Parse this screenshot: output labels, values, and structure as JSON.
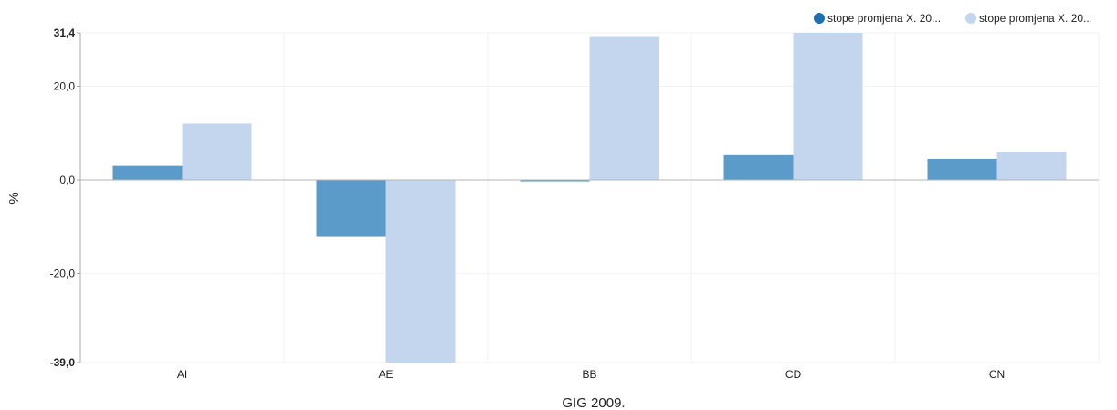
{
  "chart_data": {
    "type": "bar",
    "title": "",
    "xlabel": "GIG 2009.",
    "ylabel": "%",
    "categories": [
      "AI",
      "AE",
      "BB",
      "CD",
      "CN"
    ],
    "series": [
      {
        "name": "stope promjena X. 20...",
        "color": "#5b9bc9",
        "values": [
          3.0,
          -12.0,
          -0.3,
          5.3,
          4.5
        ]
      },
      {
        "name": "stope promjena X. 20...",
        "color": "#c3d6ee",
        "values": [
          12.0,
          -39.0,
          30.7,
          31.4,
          6.0
        ]
      }
    ],
    "ylim": [
      -39.0,
      31.4
    ],
    "yticks": [
      {
        "value": 31.4,
        "label": "31,4",
        "bold": true
      },
      {
        "value": 20.0,
        "label": "20,0",
        "bold": false
      },
      {
        "value": 0.0,
        "label": "0,0",
        "bold": false
      },
      {
        "value": -20.0,
        "label": "-20,0",
        "bold": false
      },
      {
        "value": -39.0,
        "label": "-39,0",
        "bold": true
      }
    ],
    "grid": true,
    "legend_position": "top-right"
  },
  "legend_marker_colors": [
    "#1f6fb4",
    "#c3d6ee"
  ]
}
